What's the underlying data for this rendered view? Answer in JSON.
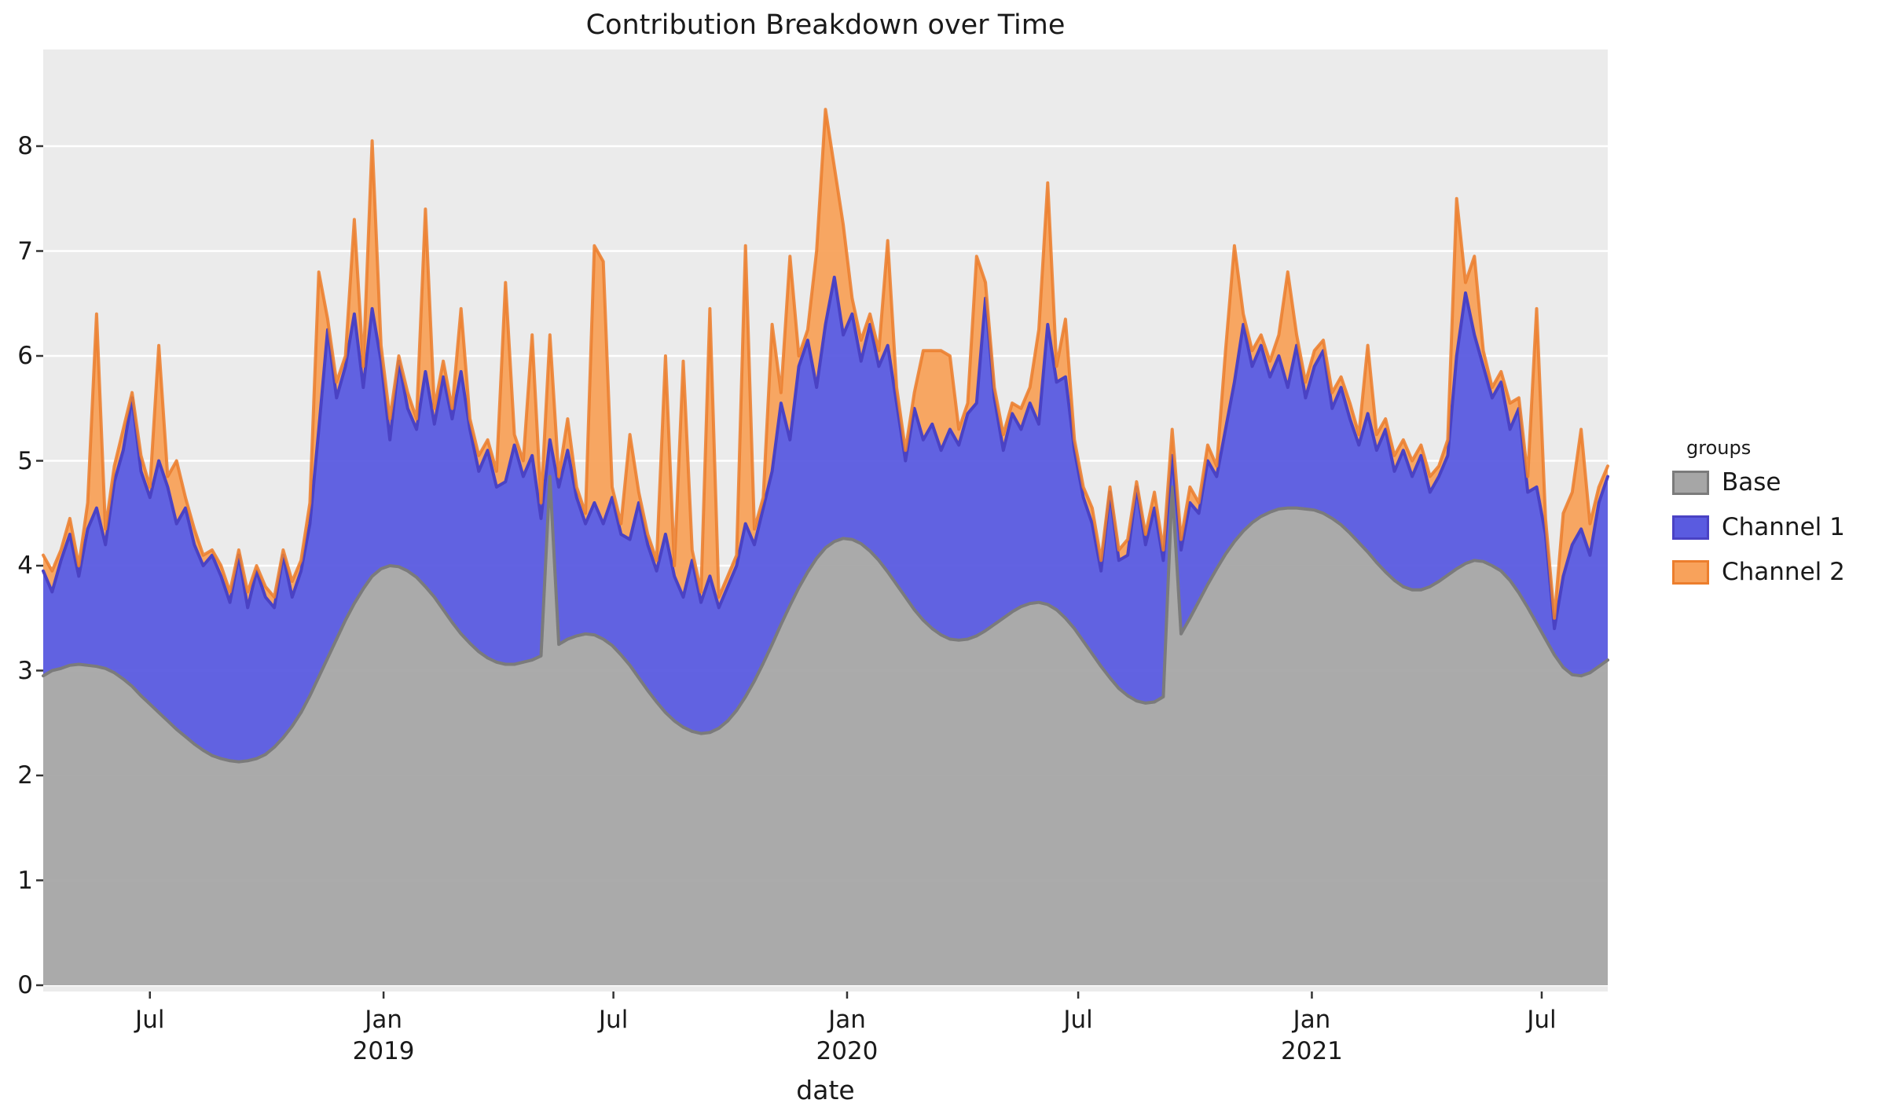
{
  "title": "Contribution Breakdown over Time",
  "axes": {
    "x_label": "date",
    "y_ticks": [
      {
        "label": "0",
        "value": 0
      },
      {
        "label": "1",
        "value": 1
      },
      {
        "label": "2",
        "value": 2
      },
      {
        "label": "3",
        "value": 3
      },
      {
        "label": "4",
        "value": 4
      },
      {
        "label": "5",
        "value": 5
      },
      {
        "label": "6",
        "value": 6
      },
      {
        "label": "7",
        "value": 7
      },
      {
        "label": "8",
        "value": 8
      }
    ],
    "x_ticks": [
      {
        "label": "Jul",
        "year": "",
        "date": "2018-07-01"
      },
      {
        "label": "Jan",
        "year": "2019",
        "date": "2019-01-01"
      },
      {
        "label": "Jul",
        "year": "",
        "date": "2019-07-01"
      },
      {
        "label": "Jan",
        "year": "2020",
        "date": "2020-01-01"
      },
      {
        "label": "Jul",
        "year": "",
        "date": "2020-07-01"
      },
      {
        "label": "Jan",
        "year": "2021",
        "date": "2021-01-01"
      },
      {
        "label": "Jul",
        "year": "",
        "date": "2021-07-01"
      }
    ]
  },
  "legend": {
    "title": "groups",
    "items": [
      {
        "label": "Base",
        "fill": "#a6a6a6",
        "edge": "#7b7b7b"
      },
      {
        "label": "Channel 1",
        "fill": "#5a5be0",
        "edge": "#4a42c4"
      },
      {
        "label": "Channel 2",
        "fill": "#f8a25b",
        "edge": "#ec7e2d"
      }
    ]
  },
  "colors": {
    "panel_background": "#ebebeb",
    "grid": "#ffffff",
    "base_fill": "#a6a6a6",
    "base_edge": "#7b7b7b",
    "channel1_fill": "#5a5be0",
    "channel1_edge": "#4a42c4",
    "channel2_fill": "#f8a25b",
    "channel2_edge": "#ec7e2d",
    "text": "#1a1a1a"
  },
  "chart_data": {
    "type": "area",
    "stacked": true,
    "title": "Contribution Breakdown over Time",
    "xlabel": "date",
    "ylabel": "",
    "ylim": [
      0,
      8.92
    ],
    "grid": true,
    "legend_position": "right",
    "x_start": "2018-04-08",
    "x_step_days": 7,
    "n_points": 177,
    "series": [
      {
        "name": "Base",
        "values": [
          2.95,
          3.0,
          3.02,
          3.05,
          3.06,
          3.05,
          3.04,
          3.02,
          2.98,
          2.92,
          2.85,
          2.76,
          2.68,
          2.6,
          2.52,
          2.44,
          2.37,
          2.3,
          2.24,
          2.19,
          2.16,
          2.14,
          2.13,
          2.14,
          2.16,
          2.2,
          2.27,
          2.36,
          2.47,
          2.6,
          2.76,
          2.94,
          3.12,
          3.3,
          3.48,
          3.64,
          3.78,
          3.9,
          3.97,
          4.0,
          3.99,
          3.95,
          3.89,
          3.8,
          3.7,
          3.58,
          3.46,
          3.35,
          3.26,
          3.18,
          3.12,
          3.08,
          3.06,
          3.06,
          3.08,
          3.1,
          3.14,
          4.85,
          3.25,
          3.3,
          3.33,
          3.35,
          3.34,
          3.3,
          3.24,
          3.15,
          3.05,
          2.93,
          2.81,
          2.7,
          2.6,
          2.52,
          2.46,
          2.42,
          2.4,
          2.41,
          2.45,
          2.52,
          2.62,
          2.75,
          2.9,
          3.07,
          3.25,
          3.44,
          3.62,
          3.79,
          3.94,
          4.07,
          4.17,
          4.23,
          4.26,
          4.25,
          4.21,
          4.14,
          4.05,
          3.94,
          3.82,
          3.7,
          3.58,
          3.48,
          3.4,
          3.34,
          3.3,
          3.29,
          3.3,
          3.33,
          3.38,
          3.44,
          3.5,
          3.56,
          3.61,
          3.64,
          3.65,
          3.63,
          3.58,
          3.5,
          3.4,
          3.28,
          3.16,
          3.04,
          2.93,
          2.83,
          2.76,
          2.71,
          2.69,
          2.7,
          2.75,
          4.75,
          3.35,
          3.5,
          3.66,
          3.82,
          3.97,
          4.11,
          4.23,
          4.33,
          4.41,
          4.47,
          4.51,
          4.54,
          4.55,
          4.55,
          4.54,
          4.53,
          4.5,
          4.45,
          4.39,
          4.31,
          4.22,
          4.13,
          4.03,
          3.94,
          3.86,
          3.8,
          3.77,
          3.77,
          3.8,
          3.85,
          3.91,
          3.97,
          4.02,
          4.05,
          4.04,
          4.0,
          3.95,
          3.86,
          3.74,
          3.6,
          3.45,
          3.3,
          3.15,
          3.03,
          2.96,
          2.95,
          2.98,
          3.04,
          3.1
        ]
      },
      {
        "name": "Channel 1",
        "values": [
          1.0,
          0.75,
          1.03,
          1.25,
          0.84,
          1.3,
          1.51,
          1.18,
          1.82,
          2.18,
          2.75,
          2.14,
          1.97,
          2.4,
          2.23,
          1.96,
          2.18,
          1.9,
          1.76,
          1.91,
          1.74,
          1.51,
          1.97,
          1.46,
          1.79,
          1.5,
          1.33,
          1.74,
          1.23,
          1.35,
          1.64,
          2.36,
          3.13,
          2.3,
          2.42,
          2.76,
          1.92,
          2.55,
          1.98,
          1.2,
          1.96,
          1.55,
          1.41,
          2.05,
          1.65,
          2.22,
          1.94,
          2.5,
          2.04,
          1.72,
          1.98,
          1.67,
          1.74,
          2.09,
          1.77,
          1.95,
          1.31,
          0.35,
          1.5,
          1.8,
          1.32,
          1.05,
          1.26,
          1.1,
          1.41,
          1.15,
          1.2,
          1.67,
          1.39,
          1.25,
          1.7,
          1.38,
          1.24,
          1.63,
          1.25,
          1.49,
          1.15,
          1.28,
          1.38,
          1.65,
          1.3,
          1.48,
          1.65,
          2.11,
          1.58,
          2.11,
          2.21,
          1.63,
          2.13,
          2.52,
          1.94,
          2.15,
          1.74,
          2.16,
          1.85,
          2.16,
          1.73,
          1.3,
          1.92,
          1.72,
          1.95,
          1.76,
          2.0,
          1.86,
          2.15,
          2.22,
          3.17,
          2.16,
          1.6,
          1.89,
          1.69,
          1.91,
          1.7,
          2.67,
          2.17,
          2.3,
          1.7,
          1.37,
          1.24,
          0.91,
          1.77,
          1.22,
          1.34,
          2.04,
          1.51,
          1.85,
          1.3,
          0.3,
          0.8,
          1.1,
          0.84,
          1.18,
          0.88,
          1.19,
          1.52,
          1.97,
          1.49,
          1.63,
          1.29,
          1.46,
          1.15,
          1.55,
          1.06,
          1.37,
          1.55,
          1.05,
          1.31,
          1.09,
          0.93,
          1.32,
          1.07,
          1.36,
          1.04,
          1.3,
          1.08,
          1.28,
          0.9,
          1.0,
          1.14,
          2.03,
          2.58,
          2.15,
          1.86,
          1.6,
          1.8,
          1.44,
          1.76,
          1.1,
          1.3,
          1.0,
          0.25,
          0.87,
          1.24,
          1.4,
          1.12,
          1.56,
          1.75
        ]
      },
      {
        "name": "Channel 2",
        "values": [
          0.15,
          0.2,
          0.1,
          0.15,
          0.1,
          0.25,
          1.85,
          0.15,
          0.15,
          0.2,
          0.05,
          0.15,
          0.1,
          1.1,
          0.1,
          0.6,
          0.1,
          0.15,
          0.1,
          0.05,
          0.1,
          0.1,
          0.05,
          0.15,
          0.05,
          0.1,
          0.1,
          0.05,
          0.15,
          0.1,
          0.2,
          1.5,
          0.1,
          0.15,
          0.1,
          0.9,
          0.2,
          1.6,
          0.15,
          0.2,
          0.05,
          0.15,
          0.1,
          1.55,
          0.15,
          0.15,
          0.1,
          0.6,
          0.1,
          0.15,
          0.1,
          0.15,
          1.9,
          0.1,
          0.15,
          1.15,
          0.15,
          1.0,
          0.1,
          0.3,
          0.1,
          0.1,
          2.45,
          2.5,
          0.1,
          0.1,
          1.0,
          0.1,
          0.1,
          0.1,
          1.7,
          0.1,
          2.25,
          0.1,
          0.1,
          2.55,
          0.1,
          0.1,
          0.1,
          2.65,
          0.15,
          0.1,
          1.4,
          0.1,
          1.75,
          0.1,
          0.1,
          1.3,
          2.05,
          1.05,
          1.05,
          0.15,
          0.2,
          0.1,
          0.15,
          1.0,
          0.15,
          0.1,
          0.15,
          0.85,
          0.7,
          0.95,
          0.7,
          0.15,
          0.1,
          1.4,
          0.15,
          0.1,
          0.15,
          0.1,
          0.2,
          0.15,
          0.9,
          1.35,
          0.15,
          0.55,
          0.1,
          0.1,
          0.15,
          0.1,
          0.05,
          0.1,
          0.15,
          0.05,
          0.1,
          0.15,
          0.1,
          0.25,
          0.1,
          0.15,
          0.1,
          0.15,
          0.1,
          0.75,
          1.3,
          0.1,
          0.15,
          0.1,
          0.15,
          0.2,
          1.1,
          0.1,
          0.15,
          0.15,
          0.1,
          0.15,
          0.1,
          0.15,
          0.1,
          0.65,
          0.15,
          0.1,
          0.15,
          0.1,
          0.15,
          0.1,
          0.15,
          0.1,
          0.15,
          1.5,
          0.1,
          0.75,
          0.15,
          0.1,
          0.1,
          0.25,
          0.1,
          0.15,
          1.7,
          0.15,
          0.1,
          0.6,
          0.5,
          0.95,
          0.3,
          0.15,
          0.1
        ]
      }
    ]
  }
}
